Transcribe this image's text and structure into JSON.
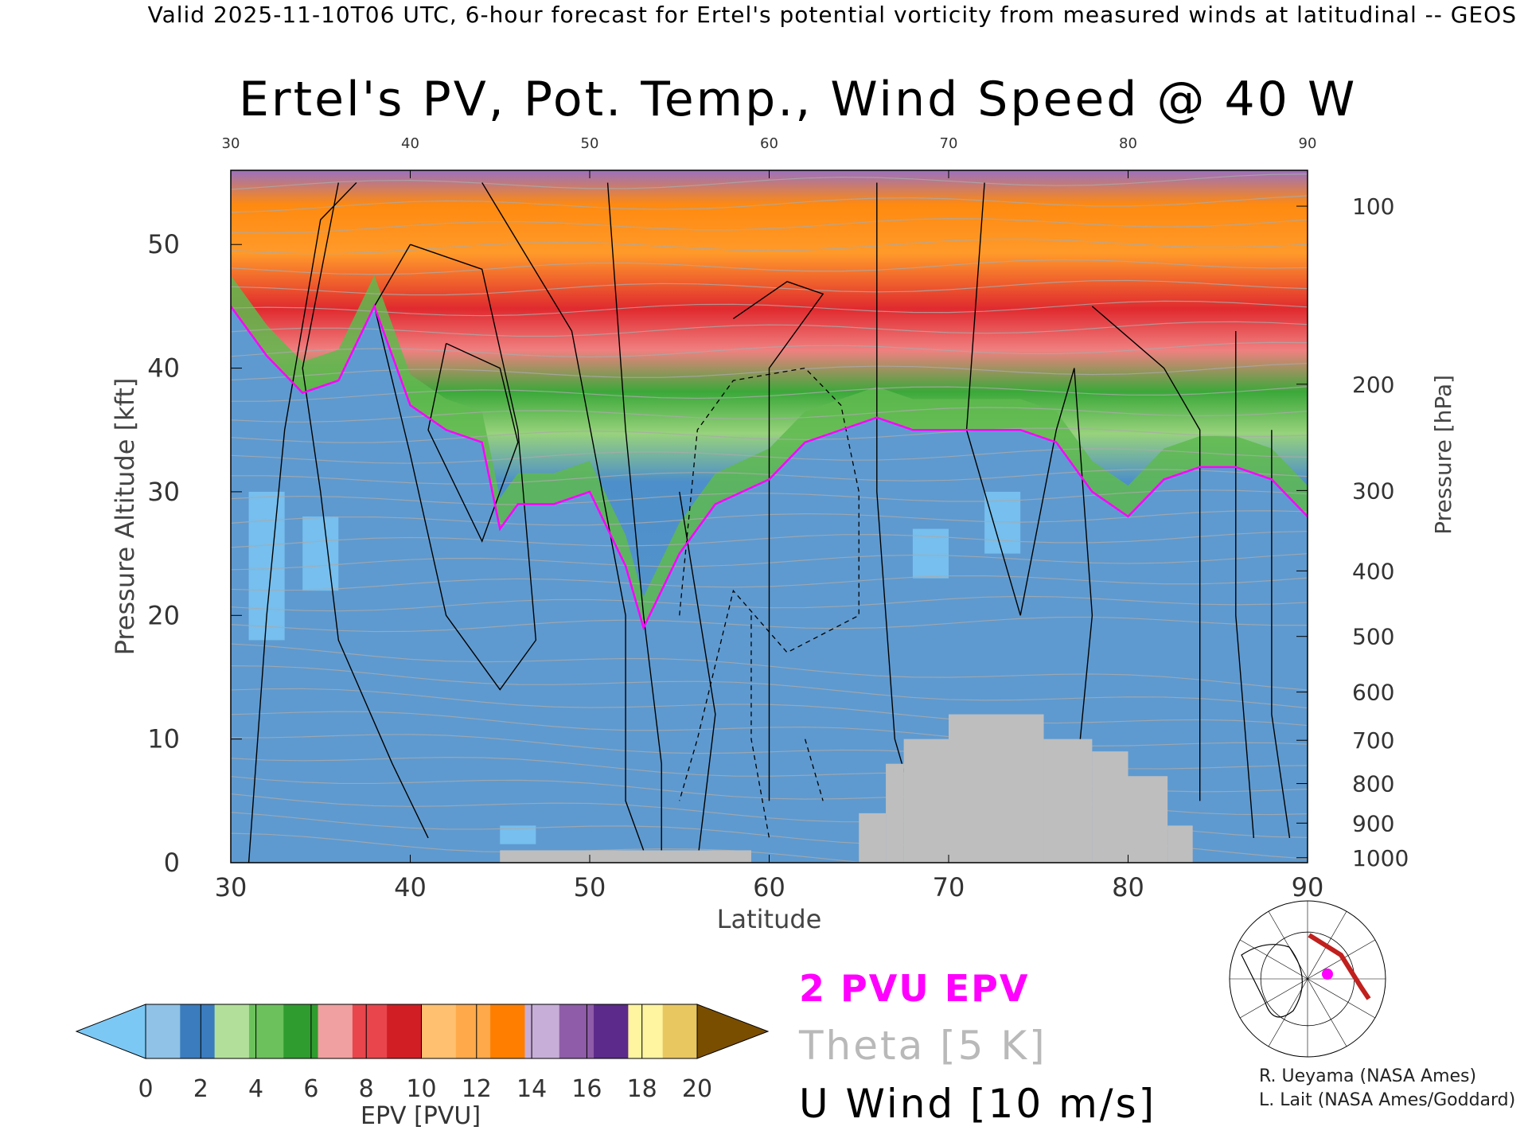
{
  "header": {
    "title": "Valid 2025-11-10T06 UTC, 6-hour forecast for Ertel's potential vorticity from measured winds at latitudinal -- GEOS"
  },
  "chart_data": {
    "type": "heatmap",
    "title": "Ertel's PV, Pot. Temp., Wind Speed @ 40 W",
    "xlabel": "Latitude",
    "ylabel_left": "Pressure Altitude [kft]",
    "ylabel_right": "Pressure [hPa]",
    "xlim": [
      30,
      90
    ],
    "ylim": [
      0,
      56
    ],
    "x_ticks": [
      30,
      40,
      50,
      60,
      70,
      80,
      90
    ],
    "y_ticks_left": [
      0,
      10,
      20,
      30,
      40,
      50
    ],
    "y_ticks_right": [
      {
        "label": "100",
        "kft": 53.1
      },
      {
        "label": "200",
        "kft": 38.7
      },
      {
        "label": "300",
        "kft": 30.1
      },
      {
        "label": "400",
        "kft": 23.6
      },
      {
        "label": "500",
        "kft": 18.3
      },
      {
        "label": "600",
        "kft": 13.8
      },
      {
        "label": "700",
        "kft": 9.9
      },
      {
        "label": "800",
        "kft": 6.4
      },
      {
        "label": "900",
        "kft": 3.2
      },
      {
        "label": "1000",
        "kft": 0.4
      }
    ],
    "tropopause_2pvu_kft": {
      "lat": [
        30,
        32,
        34,
        36,
        38,
        40,
        42,
        44,
        45,
        46,
        48,
        50,
        52,
        53,
        55,
        57,
        60,
        62,
        64,
        66,
        68,
        70,
        72,
        74,
        76,
        78,
        80,
        82,
        84,
        86,
        88,
        90
      ],
      "kft": [
        45,
        41,
        38,
        39,
        45,
        37,
        35,
        34,
        27,
        29,
        29,
        30,
        24,
        19,
        25,
        29,
        31,
        34,
        35,
        36,
        35,
        35,
        35,
        35,
        34,
        30,
        28,
        31,
        32,
        32,
        31,
        28
      ]
    },
    "surface_mask": [
      {
        "lat_from": 45,
        "lat_to": 59,
        "kft": 1
      },
      {
        "lat_from": 65,
        "lat_to": 66.5,
        "kft": 4
      },
      {
        "lat_from": 66.5,
        "lat_to": 67.5,
        "kft": 8
      },
      {
        "lat_from": 67.5,
        "lat_to": 70,
        "kft": 10
      },
      {
        "lat_from": 70,
        "lat_to": 75.3,
        "kft": 12
      },
      {
        "lat_from": 75.3,
        "lat_to": 78,
        "kft": 10
      },
      {
        "lat_from": 78,
        "lat_to": 80,
        "kft": 9
      },
      {
        "lat_from": 80,
        "lat_to": 82.2,
        "kft": 7
      },
      {
        "lat_from": 82.2,
        "lat_to": 83.6,
        "kft": 3
      }
    ],
    "colorbar": {
      "label": "EPV [PVU]",
      "ticks": [
        "0",
        "2",
        "4",
        "6",
        "8",
        "10",
        "12",
        "14",
        "16",
        "18",
        "20"
      ],
      "under_color": "#7cc8f5",
      "over_color": "#7a4e00",
      "colors": [
        "#8fc2e6",
        "#3a7cbe",
        "#b2e09a",
        "#6cc15c",
        "#2f9c2f",
        "#f0a0a0",
        "#e8454c",
        "#d11e24",
        "#ffc070",
        "#ffa94a",
        "#ff7e00",
        "#c7aed8",
        "#8e5ca8",
        "#5b2a8a",
        "#fff4a0",
        "#e9c760"
      ]
    },
    "legend": {
      "epv": "2 PVU EPV",
      "theta": "Theta [5 K]",
      "u": "U Wind [10 m/s]"
    },
    "colors": {
      "tropopause": "#ff00ff",
      "theta": "#aaaaaa",
      "wind": "#000000",
      "mask": "#bebebe"
    }
  },
  "credits": {
    "line1": "R. Ueyama (NASA Ames)",
    "line2": "L. Lait (NASA Ames/Goddard)"
  },
  "map_inset": {
    "icon": "polar-map-icon",
    "track_color": "#c0201e",
    "marker_color": "#ff00ff"
  }
}
